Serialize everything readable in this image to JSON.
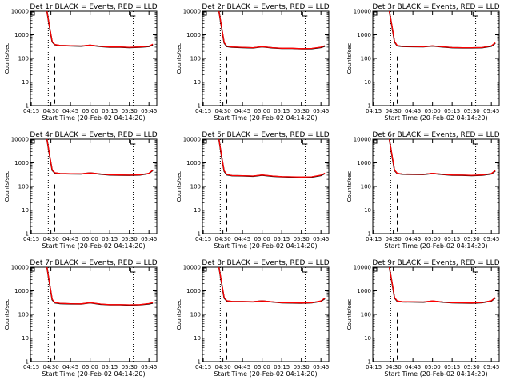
{
  "chart_data": [
    {
      "type": "line",
      "title": "Det 1r BLACK = Events, RED = LLD",
      "xlabel": "Start Time (20-Feb-02 04:14:20)",
      "ylabel": "Counts/sec",
      "y_scale": "log",
      "ylim": [
        1,
        10000
      ],
      "x_tick_labels": [
        "04:15",
        "04:30",
        "04:45",
        "05:00",
        "05:15",
        "05:30",
        "05:45"
      ],
      "y_tick_labels": [
        "1",
        "10",
        "100",
        "1000",
        "10000"
      ],
      "series": [
        {
          "name": "Events",
          "color": "#000000",
          "x": [
            "04:27",
            "04:29",
            "04:31",
            "04:33",
            "04:37",
            "04:45",
            "04:53",
            "05:00",
            "05:08",
            "05:15",
            "05:23",
            "05:30",
            "05:38",
            "05:45",
            "05:48"
          ],
          "values": [
            10000,
            2000,
            500,
            380,
            350,
            340,
            330,
            360,
            320,
            300,
            300,
            290,
            300,
            320,
            380
          ]
        },
        {
          "name": "LLD",
          "color": "#ff0000",
          "x": [
            "04:27",
            "04:29",
            "04:31",
            "04:33",
            "04:37",
            "04:45",
            "04:53",
            "05:00",
            "05:08",
            "05:15",
            "05:23",
            "05:30",
            "05:38",
            "05:45",
            "05:48"
          ],
          "values": [
            10000,
            2100,
            520,
            390,
            355,
            345,
            335,
            365,
            325,
            305,
            305,
            295,
            305,
            330,
            400
          ]
        }
      ],
      "vlines_dotted": [
        "04:28",
        "05:33"
      ],
      "vlines_dashed": [
        "04:33"
      ]
    },
    {
      "type": "line",
      "title": "Det 2r BLACK = Events, RED = LLD",
      "xlabel": "Start Time (20-Feb-02 04:14:20)",
      "ylabel": "Counts/sec",
      "y_scale": "log",
      "ylim": [
        1,
        10000
      ],
      "x_tick_labels": [
        "04:15",
        "04:30",
        "04:45",
        "05:00",
        "05:15",
        "05:30",
        "05:45"
      ],
      "y_tick_labels": [
        "1",
        "10",
        "100",
        "1000",
        "10000"
      ],
      "series": [
        {
          "name": "Events",
          "color": "#000000",
          "x": [
            "04:27",
            "04:29",
            "04:31",
            "04:33",
            "04:37",
            "04:45",
            "04:53",
            "05:00",
            "05:08",
            "05:15",
            "05:23",
            "05:30",
            "05:38",
            "05:45",
            "05:48"
          ],
          "values": [
            10000,
            2000,
            450,
            320,
            300,
            290,
            280,
            310,
            280,
            265,
            265,
            255,
            260,
            290,
            330
          ]
        },
        {
          "name": "LLD",
          "color": "#ff0000",
          "x": [
            "04:27",
            "04:29",
            "04:31",
            "04:33",
            "04:37",
            "04:45",
            "04:53",
            "05:00",
            "05:08",
            "05:15",
            "05:23",
            "05:30",
            "05:38",
            "05:45",
            "05:48"
          ],
          "values": [
            10000,
            2100,
            470,
            330,
            305,
            295,
            285,
            315,
            285,
            270,
            270,
            260,
            265,
            300,
            345
          ]
        }
      ],
      "vlines_dotted": [
        "04:28",
        "05:33"
      ],
      "vlines_dashed": [
        "04:33"
      ]
    },
    {
      "type": "line",
      "title": "Det 3r BLACK = Events, RED = LLD",
      "xlabel": "Start Time (20-Feb-02 04:14:20)",
      "ylabel": "Counts/sec",
      "y_scale": "log",
      "ylim": [
        1,
        10000
      ],
      "x_tick_labels": [
        "04:15",
        "04:30",
        "04:45",
        "05:00",
        "05:15",
        "05:30",
        "05:45"
      ],
      "y_tick_labels": [
        "1",
        "10",
        "100",
        "1000",
        "10000"
      ],
      "series": [
        {
          "name": "Events",
          "color": "#000000",
          "x": [
            "04:27",
            "04:29",
            "04:31",
            "04:33",
            "04:37",
            "04:45",
            "04:53",
            "05:00",
            "05:08",
            "05:15",
            "05:23",
            "05:30",
            "05:38",
            "05:45",
            "05:48"
          ],
          "values": [
            10000,
            2200,
            500,
            340,
            320,
            315,
            310,
            335,
            305,
            285,
            280,
            280,
            285,
            330,
            440
          ]
        },
        {
          "name": "LLD",
          "color": "#ff0000",
          "x": [
            "04:27",
            "04:29",
            "04:31",
            "04:33",
            "04:37",
            "04:45",
            "04:53",
            "05:00",
            "05:08",
            "05:15",
            "05:23",
            "05:30",
            "05:38",
            "05:45",
            "05:48"
          ],
          "values": [
            10000,
            2300,
            520,
            350,
            325,
            320,
            315,
            340,
            310,
            290,
            285,
            285,
            290,
            340,
            460
          ]
        }
      ],
      "vlines_dotted": [
        "04:28",
        "05:33"
      ],
      "vlines_dashed": [
        "04:33"
      ]
    },
    {
      "type": "line",
      "title": "Det 4r BLACK = Events, RED = LLD",
      "xlabel": "Start Time (20-Feb-02 04:14:20)",
      "ylabel": "Counts/sec",
      "y_scale": "log",
      "ylim": [
        1,
        10000
      ],
      "x_tick_labels": [
        "04:15",
        "04:30",
        "04:45",
        "05:00",
        "05:15",
        "05:30",
        "05:45"
      ],
      "y_tick_labels": [
        "1",
        "10",
        "100",
        "1000",
        "10000"
      ],
      "series": [
        {
          "name": "Events",
          "color": "#000000",
          "x": [
            "04:27",
            "04:29",
            "04:31",
            "04:33",
            "04:37",
            "04:45",
            "04:53",
            "05:00",
            "05:08",
            "05:15",
            "05:23",
            "05:30",
            "05:38",
            "05:45",
            "05:48"
          ],
          "values": [
            10000,
            2000,
            480,
            370,
            345,
            340,
            335,
            370,
            330,
            305,
            300,
            295,
            305,
            350,
            480
          ]
        },
        {
          "name": "LLD",
          "color": "#ff0000",
          "x": [
            "04:27",
            "04:29",
            "04:31",
            "04:33",
            "04:37",
            "04:45",
            "04:53",
            "05:00",
            "05:08",
            "05:15",
            "05:23",
            "05:30",
            "05:38",
            "05:45",
            "05:48"
          ],
          "values": [
            10000,
            2100,
            500,
            380,
            350,
            345,
            340,
            375,
            335,
            310,
            305,
            300,
            310,
            360,
            500
          ]
        }
      ],
      "vlines_dotted": [
        "04:28",
        "05:33"
      ],
      "vlines_dashed": [
        "04:33"
      ]
    },
    {
      "type": "line",
      "title": "Det 5r BLACK = Events, RED = LLD",
      "xlabel": "Start Time (20-Feb-02 04:14:20)",
      "ylabel": "Counts/sec",
      "y_scale": "log",
      "ylim": [
        1,
        10000
      ],
      "x_tick_labels": [
        "04:15",
        "04:30",
        "04:45",
        "05:00",
        "05:15",
        "05:30",
        "05:45"
      ],
      "y_tick_labels": [
        "1",
        "10",
        "100",
        "1000",
        "10000"
      ],
      "series": [
        {
          "name": "Events",
          "color": "#000000",
          "x": [
            "04:27",
            "04:29",
            "04:31",
            "04:33",
            "04:37",
            "04:45",
            "04:53",
            "05:00",
            "05:08",
            "05:15",
            "05:23",
            "05:30",
            "05:38",
            "05:45",
            "05:48"
          ],
          "values": [
            10000,
            1800,
            440,
            310,
            285,
            280,
            270,
            300,
            270,
            255,
            250,
            245,
            250,
            290,
            350
          ]
        },
        {
          "name": "LLD",
          "color": "#ff0000",
          "x": [
            "04:27",
            "04:29",
            "04:31",
            "04:33",
            "04:37",
            "04:45",
            "04:53",
            "05:00",
            "05:08",
            "05:15",
            "05:23",
            "05:30",
            "05:38",
            "05:45",
            "05:48"
          ],
          "values": [
            10000,
            1900,
            460,
            320,
            290,
            285,
            275,
            305,
            275,
            260,
            255,
            250,
            255,
            300,
            365
          ]
        }
      ],
      "vlines_dotted": [
        "04:28",
        "05:33"
      ],
      "vlines_dashed": [
        "04:33"
      ]
    },
    {
      "type": "line",
      "title": "Det 6r BLACK = Events, RED = LLD",
      "xlabel": "Start Time (20-Feb-02 04:14:20)",
      "ylabel": "Counts/sec",
      "y_scale": "log",
      "ylim": [
        1,
        10000
      ],
      "x_tick_labels": [
        "04:15",
        "04:30",
        "04:45",
        "05:00",
        "05:15",
        "05:30",
        "05:45"
      ],
      "y_tick_labels": [
        "1",
        "10",
        "100",
        "1000",
        "10000"
      ],
      "series": [
        {
          "name": "Events",
          "color": "#000000",
          "x": [
            "04:27",
            "04:29",
            "04:31",
            "04:33",
            "04:37",
            "04:45",
            "04:53",
            "05:00",
            "05:08",
            "05:15",
            "05:23",
            "05:30",
            "05:38",
            "05:45",
            "05:48"
          ],
          "values": [
            10000,
            2000,
            470,
            350,
            330,
            325,
            320,
            355,
            320,
            300,
            295,
            290,
            300,
            340,
            450
          ]
        },
        {
          "name": "LLD",
          "color": "#ff0000",
          "x": [
            "04:27",
            "04:29",
            "04:31",
            "04:33",
            "04:37",
            "04:45",
            "04:53",
            "05:00",
            "05:08",
            "05:15",
            "05:23",
            "05:30",
            "05:38",
            "05:45",
            "05:48"
          ],
          "values": [
            10000,
            2100,
            490,
            360,
            335,
            330,
            325,
            360,
            325,
            305,
            300,
            295,
            305,
            350,
            470
          ]
        }
      ],
      "vlines_dotted": [
        "04:28",
        "05:33"
      ],
      "vlines_dashed": [
        "04:33"
      ]
    },
    {
      "type": "line",
      "title": "Det 7r BLACK = Events, RED = LLD",
      "xlabel": "Start Time (20-Feb-02 04:14:20)",
      "ylabel": "Counts/sec",
      "y_scale": "log",
      "ylim": [
        1,
        10000
      ],
      "x_tick_labels": [
        "04:15",
        "04:30",
        "04:45",
        "05:00",
        "05:15",
        "05:30",
        "05:45"
      ],
      "y_tick_labels": [
        "1",
        "10",
        "100",
        "1000",
        "10000"
      ],
      "series": [
        {
          "name": "Events",
          "color": "#000000",
          "x": [
            "04:27",
            "04:29",
            "04:31",
            "04:33",
            "04:37",
            "04:45",
            "04:53",
            "05:00",
            "05:08",
            "05:15",
            "05:23",
            "05:30",
            "05:38",
            "05:45",
            "05:48"
          ],
          "values": [
            10000,
            1900,
            420,
            310,
            290,
            280,
            275,
            310,
            270,
            255,
            255,
            250,
            255,
            280,
            300
          ]
        },
        {
          "name": "LLD",
          "color": "#ff0000",
          "x": [
            "04:27",
            "04:29",
            "04:31",
            "04:33",
            "04:37",
            "04:45",
            "04:53",
            "05:00",
            "05:08",
            "05:15",
            "05:23",
            "05:30",
            "05:38",
            "05:45",
            "05:48"
          ],
          "values": [
            10000,
            2000,
            440,
            320,
            295,
            285,
            280,
            315,
            275,
            260,
            260,
            255,
            260,
            290,
            315
          ]
        }
      ],
      "vlines_dotted": [
        "04:28",
        "05:33"
      ],
      "vlines_dashed": [
        "04:33"
      ]
    },
    {
      "type": "line",
      "title": "Det 8r BLACK = Events, RED = LLD",
      "xlabel": "Start Time (20-Feb-02 04:14:20)",
      "ylabel": "Counts/sec",
      "y_scale": "log",
      "ylim": [
        1,
        10000
      ],
      "x_tick_labels": [
        "04:15",
        "04:30",
        "04:45",
        "05:00",
        "05:15",
        "05:30",
        "05:45"
      ],
      "y_tick_labels": [
        "1",
        "10",
        "100",
        "1000",
        "10000"
      ],
      "series": [
        {
          "name": "Events",
          "color": "#000000",
          "x": [
            "04:27",
            "04:29",
            "04:31",
            "04:33",
            "04:37",
            "04:45",
            "04:53",
            "05:00",
            "05:08",
            "05:15",
            "05:23",
            "05:30",
            "05:38",
            "05:45",
            "05:48"
          ],
          "values": [
            10000,
            2100,
            490,
            370,
            350,
            345,
            340,
            370,
            335,
            310,
            305,
            300,
            310,
            360,
            470
          ]
        },
        {
          "name": "LLD",
          "color": "#ff0000",
          "x": [
            "04:27",
            "04:29",
            "04:31",
            "04:33",
            "04:37",
            "04:45",
            "04:53",
            "05:00",
            "05:08",
            "05:15",
            "05:23",
            "05:30",
            "05:38",
            "05:45",
            "05:48"
          ],
          "values": [
            10000,
            2200,
            510,
            380,
            355,
            350,
            345,
            375,
            340,
            315,
            310,
            305,
            315,
            370,
            490
          ]
        }
      ],
      "vlines_dotted": [
        "04:28",
        "05:33"
      ],
      "vlines_dashed": [
        "04:33"
      ]
    },
    {
      "type": "line",
      "title": "Det 9r BLACK = Events, RED = LLD",
      "xlabel": "Start Time (20-Feb-02 04:14:20)",
      "ylabel": "Counts/sec",
      "y_scale": "log",
      "ylim": [
        1,
        10000
      ],
      "x_tick_labels": [
        "04:15",
        "04:30",
        "04:45",
        "05:00",
        "05:15",
        "05:30",
        "05:45"
      ],
      "y_tick_labels": [
        "1",
        "10",
        "100",
        "1000",
        "10000"
      ],
      "series": [
        {
          "name": "Events",
          "color": "#000000",
          "x": [
            "04:27",
            "04:29",
            "04:31",
            "04:33",
            "04:37",
            "04:45",
            "04:53",
            "05:00",
            "05:08",
            "05:15",
            "05:23",
            "05:30",
            "05:38",
            "05:45",
            "05:48"
          ],
          "values": [
            10000,
            2200,
            500,
            360,
            340,
            335,
            330,
            365,
            330,
            310,
            305,
            300,
            315,
            370,
            500
          ]
        },
        {
          "name": "LLD",
          "color": "#ff0000",
          "x": [
            "04:27",
            "04:29",
            "04:31",
            "04:33",
            "04:37",
            "04:45",
            "04:53",
            "05:00",
            "05:08",
            "05:15",
            "05:23",
            "05:30",
            "05:38",
            "05:45",
            "05:48"
          ],
          "values": [
            10000,
            2300,
            520,
            370,
            345,
            340,
            335,
            370,
            335,
            315,
            310,
            305,
            320,
            380,
            520
          ]
        }
      ],
      "vlines_dotted": [
        "04:28",
        "05:33"
      ],
      "vlines_dashed": [
        "04:33"
      ]
    }
  ]
}
